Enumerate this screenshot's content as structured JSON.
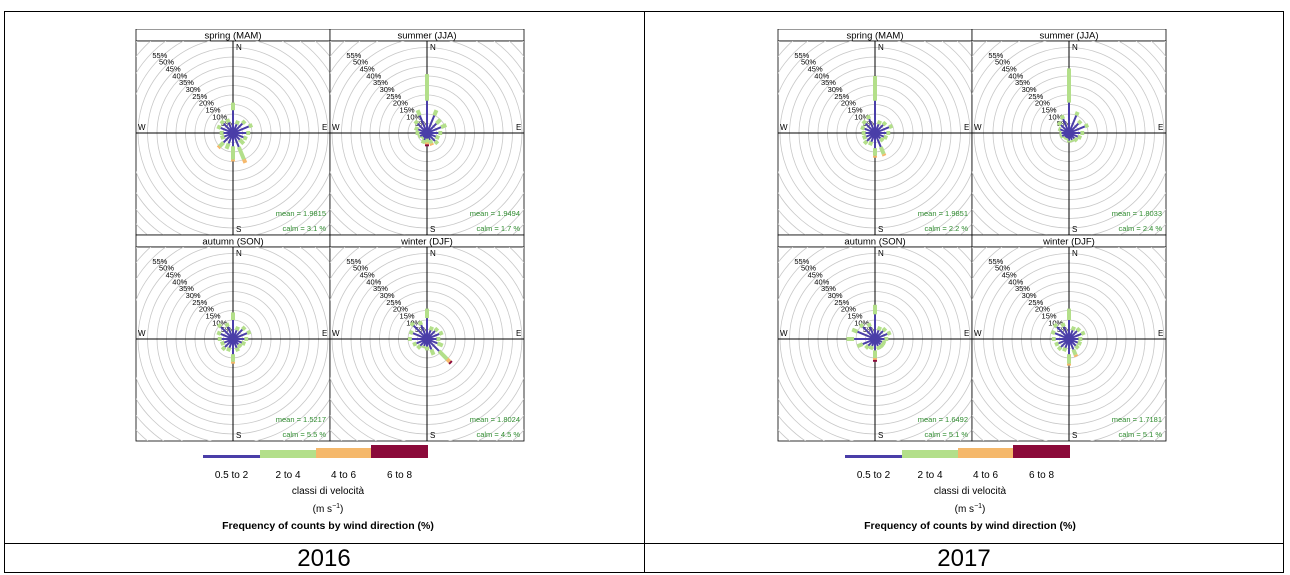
{
  "legend": {
    "classes": [
      {
        "label": "0.5 to 2",
        "color": "#4a3ea8"
      },
      {
        "label": "2 to 4",
        "color": "#b3df8a"
      },
      {
        "label": "4 to 6",
        "color": "#f5b86b"
      },
      {
        "label": "6 to 8",
        "color": "#8b0a3a"
      }
    ],
    "title": "classi di velocità",
    "unit": "(m s",
    "unit_sup": "−1",
    "unit_close": ")",
    "footer": "Frequency of counts by wind direction (%)"
  },
  "compass": {
    "n": "N",
    "e": "E",
    "s": "S",
    "w": "W"
  },
  "ring_labels": [
    "5%",
    "10%",
    "15%",
    "20%",
    "25%",
    "30%",
    "35%",
    "40%",
    "45%",
    "50%",
    "55%"
  ],
  "chart_data": [
    {
      "type": "windrose",
      "year": "2016",
      "panels": [
        {
          "title": "spring (MAM)",
          "mean": "mean = 1.9815",
          "calm": "calm = 3.1 %",
          "petals": [
            [
              12,
              4,
              0,
              0
            ],
            [
              5,
              2,
              0,
              0
            ],
            [
              7,
              2,
              0,
              0
            ],
            [
              9,
              2,
              0,
              0
            ],
            [
              7,
              2,
              0,
              0
            ],
            [
              6,
              2,
              0,
              0
            ],
            [
              5,
              3,
              0,
              0
            ],
            [
              8,
              7,
              2,
              0
            ],
            [
              7,
              7,
              1,
              0
            ],
            [
              6,
              3,
              0,
              0
            ],
            [
              7,
              3,
              1,
              0
            ],
            [
              5,
              2,
              0,
              0
            ],
            [
              5,
              2,
              0,
              0
            ],
            [
              7,
              2,
              0,
              0
            ],
            [
              7,
              2,
              0,
              0
            ],
            [
              6,
              2,
              0,
              0
            ]
          ]
        },
        {
          "title": "summer (JJA)",
          "mean": "mean = 1.9494",
          "calm": "calm = 1.7 %",
          "petals": [
            [
              17,
              14,
              0,
              0
            ],
            [
              10,
              3,
              0,
              0
            ],
            [
              7,
              3,
              0,
              0
            ],
            [
              8,
              3,
              0,
              0
            ],
            [
              6,
              2,
              0,
              0
            ],
            [
              5,
              2,
              0,
              0
            ],
            [
              6,
              2,
              0,
              0
            ],
            [
              4,
              2,
              1,
              0
            ],
            [
              3,
              2,
              1,
              1
            ],
            [
              4,
              2,
              0,
              0
            ],
            [
              3,
              1,
              0,
              0
            ],
            [
              4,
              1,
              0,
              0
            ],
            [
              4,
              2,
              0,
              0
            ],
            [
              5,
              2,
              0,
              0
            ],
            [
              7,
              2,
              0,
              0
            ],
            [
              10,
              3,
              0,
              0
            ]
          ]
        },
        {
          "title": "autumn (SON)",
          "mean": "mean = 1.5217",
          "calm": "calm = 5.5 %",
          "petals": [
            [
              10,
              4,
              0,
              0
            ],
            [
              5,
              2,
              0,
              0
            ],
            [
              7,
              2,
              0,
              0
            ],
            [
              8,
              2,
              0,
              0
            ],
            [
              6,
              2,
              0,
              0
            ],
            [
              5,
              2,
              0,
              0
            ],
            [
              4,
              2,
              0,
              0
            ],
            [
              5,
              2,
              0,
              0
            ],
            [
              8,
              4,
              1,
              0
            ],
            [
              5,
              2,
              0,
              0
            ],
            [
              6,
              2,
              0,
              0
            ],
            [
              5,
              2,
              0,
              0
            ],
            [
              6,
              2,
              0,
              0
            ],
            [
              7,
              2,
              0,
              0
            ],
            [
              9,
              2,
              0,
              0
            ],
            [
              7,
              2,
              0,
              0
            ]
          ]
        },
        {
          "title": "winter (DJF)",
          "mean": "mean = 1.8024",
          "calm": "calm = 4.5 %",
          "petals": [
            [
              11,
              5,
              0,
              0
            ],
            [
              5,
              2,
              0,
              0
            ],
            [
              6,
              2,
              0,
              0
            ],
            [
              7,
              2,
              0,
              0
            ],
            [
              5,
              2,
              0,
              0
            ],
            [
              6,
              3,
              0,
              0
            ],
            [
              9,
              6,
              2,
              1
            ],
            [
              6,
              3,
              0,
              0
            ],
            [
              4,
              2,
              0,
              0
            ],
            [
              4,
              1,
              0,
              0
            ],
            [
              5,
              2,
              0,
              0
            ],
            [
              6,
              2,
              0,
              0
            ],
            [
              8,
              2,
              0,
              0
            ],
            [
              8,
              2,
              0,
              0
            ],
            [
              10,
              2,
              0,
              0
            ],
            [
              8,
              2,
              0,
              0
            ]
          ]
        }
      ]
    },
    {
      "type": "windrose",
      "year": "2017",
      "panels": [
        {
          "title": "spring (MAM)",
          "mean": "mean = 1.9851",
          "calm": "calm = 2.2 %",
          "petals": [
            [
              17,
              13,
              0,
              0
            ],
            [
              5,
              2,
              0,
              0
            ],
            [
              6,
              2,
              0,
              0
            ],
            [
              8,
              2,
              0,
              0
            ],
            [
              6,
              2,
              0,
              0
            ],
            [
              5,
              2,
              0,
              0
            ],
            [
              4,
              2,
              0,
              0
            ],
            [
              8,
              4,
              1,
              0
            ],
            [
              8,
              4,
              1,
              0
            ],
            [
              5,
              2,
              0,
              0
            ],
            [
              6,
              2,
              0,
              0
            ],
            [
              5,
              2,
              0,
              0
            ],
            [
              5,
              2,
              0,
              0
            ],
            [
              6,
              2,
              0,
              0
            ],
            [
              7,
              2,
              0,
              0
            ],
            [
              8,
              2,
              0,
              0
            ]
          ]
        },
        {
          "title": "summer (JJA)",
          "mean": "mean = 1.8033",
          "calm": "calm = 2.4 %",
          "petals": [
            [
              16,
              18,
              0,
              0
            ],
            [
              10,
              2,
              0,
              0
            ],
            [
              7,
              2,
              0,
              0
            ],
            [
              9,
              2,
              0,
              0
            ],
            [
              6,
              2,
              0,
              0
            ],
            [
              5,
              2,
              0,
              0
            ],
            [
              4,
              2,
              0,
              0
            ],
            [
              4,
              1,
              0,
              0
            ],
            [
              4,
              1,
              0,
              0
            ],
            [
              3,
              1,
              0,
              0
            ],
            [
              3,
              1,
              0,
              0
            ],
            [
              4,
              1,
              0,
              0
            ],
            [
              4,
              1,
              0,
              0
            ],
            [
              5,
              1,
              0,
              0
            ],
            [
              6,
              2,
              0,
              0
            ],
            [
              8,
              2,
              0,
              0
            ]
          ]
        },
        {
          "title": "autumn (SON)",
          "mean": "mean = 1.6492",
          "calm": "calm = 5.1 %",
          "petals": [
            [
              13,
              5,
              0,
              0
            ],
            [
              5,
              2,
              0,
              0
            ],
            [
              6,
              2,
              0,
              0
            ],
            [
              7,
              2,
              0,
              0
            ],
            [
              5,
              2,
              0,
              0
            ],
            [
              4,
              2,
              0,
              0
            ],
            [
              4,
              2,
              0,
              0
            ],
            [
              4,
              2,
              0,
              0
            ],
            [
              6,
              4,
              1,
              1
            ],
            [
              4,
              2,
              0,
              0
            ],
            [
              5,
              2,
              0,
              0
            ],
            [
              7,
              3,
              0,
              0
            ],
            [
              11,
              4,
              0,
              0
            ],
            [
              10,
              3,
              0,
              0
            ],
            [
              9,
              2,
              0,
              0
            ],
            [
              7,
              2,
              0,
              0
            ]
          ]
        },
        {
          "title": "winter (DJF)",
          "mean": "mean = 1.7181",
          "calm": "calm = 5.1 %",
          "petals": [
            [
              10,
              6,
              0,
              0
            ],
            [
              5,
              2,
              0,
              0
            ],
            [
              6,
              2,
              0,
              0
            ],
            [
              7,
              2,
              0,
              0
            ],
            [
              5,
              2,
              0,
              0
            ],
            [
              5,
              2,
              0,
              0
            ],
            [
              5,
              2,
              0,
              0
            ],
            [
              6,
              3,
              1,
              0
            ],
            [
              8,
              5,
              1,
              0
            ],
            [
              5,
              2,
              0,
              0
            ],
            [
              6,
              2,
              0,
              0
            ],
            [
              6,
              2,
              0,
              0
            ],
            [
              7,
              2,
              0,
              0
            ],
            [
              8,
              2,
              0,
              0
            ],
            [
              9,
              2,
              0,
              0
            ],
            [
              7,
              2,
              0,
              0
            ]
          ]
        }
      ]
    }
  ],
  "captions": {
    "left": "2016",
    "right": "2017"
  }
}
